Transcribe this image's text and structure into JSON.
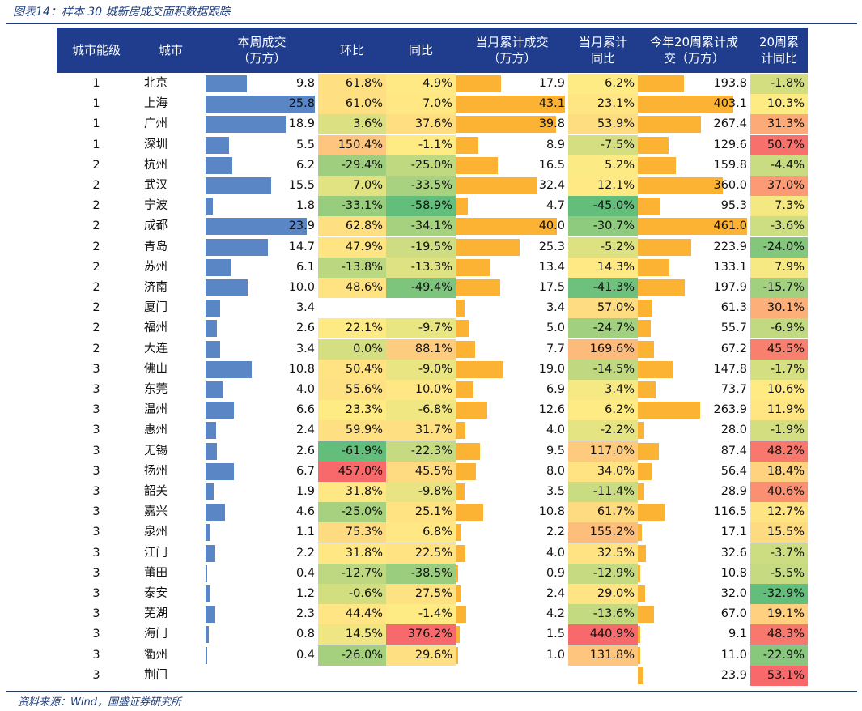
{
  "caption": "图表14：样本 30 城新房成交面积数据跟踪",
  "source": "资料来源：Wind，国盛证券研究所",
  "headers": {
    "tier": "城市能级",
    "city": "城市",
    "week": "本周成交\n（万方）",
    "hb": "环比",
    "tb": "同比",
    "month": "当月累计成交\n（万方）",
    "month_tb": "当月累计\n同比",
    "ytd": "今年20周累计成\n交（万方）",
    "ytd_tb": "20周累\n计同比"
  },
  "colors": {
    "header_bg": "#1f3d8c",
    "bar_blue": "#5b86c5",
    "bar_orange": "#fcb232",
    "rule": "#1f3d7a"
  },
  "table_data": {
    "type": "table",
    "rows": [
      {
        "tier": "1",
        "city": "北京",
        "week": "9.8",
        "hb": "61.8%",
        "tb": "4.9%",
        "month": "17.9",
        "month_tb": "6.2%",
        "ytd": "193.8",
        "ytd_tb": "-1.8%"
      },
      {
        "tier": "1",
        "city": "上海",
        "week": "25.8",
        "hb": "61.0%",
        "tb": "7.0%",
        "month": "43.1",
        "month_tb": "23.1%",
        "ytd": "403.1",
        "ytd_tb": "10.3%"
      },
      {
        "tier": "1",
        "city": "广州",
        "week": "18.9",
        "hb": "3.6%",
        "tb": "37.6%",
        "month": "39.8",
        "month_tb": "53.9%",
        "ytd": "267.4",
        "ytd_tb": "31.3%"
      },
      {
        "tier": "1",
        "city": "深圳",
        "week": "5.5",
        "hb": "150.4%",
        "tb": "-1.1%",
        "month": "8.9",
        "month_tb": "-7.5%",
        "ytd": "129.6",
        "ytd_tb": "50.7%"
      },
      {
        "tier": "2",
        "city": "杭州",
        "week": "6.2",
        "hb": "-29.4%",
        "tb": "-25.0%",
        "month": "16.5",
        "month_tb": "5.2%",
        "ytd": "159.8",
        "ytd_tb": "-4.4%"
      },
      {
        "tier": "2",
        "city": "武汉",
        "week": "15.5",
        "hb": "7.0%",
        "tb": "-33.5%",
        "month": "32.4",
        "month_tb": "12.1%",
        "ytd": "360.0",
        "ytd_tb": "37.0%"
      },
      {
        "tier": "2",
        "city": "宁波",
        "week": "1.8",
        "hb": "-33.1%",
        "tb": "-58.9%",
        "month": "4.7",
        "month_tb": "-45.0%",
        "ytd": "95.3",
        "ytd_tb": "7.3%"
      },
      {
        "tier": "2",
        "city": "成都",
        "week": "23.9",
        "hb": "62.8%",
        "tb": "-34.1%",
        "month": "40.0",
        "month_tb": "-30.7%",
        "ytd": "461.0",
        "ytd_tb": "-3.6%"
      },
      {
        "tier": "2",
        "city": "青岛",
        "week": "14.7",
        "hb": "47.9%",
        "tb": "-19.5%",
        "month": "25.3",
        "month_tb": "-5.2%",
        "ytd": "223.9",
        "ytd_tb": "-24.0%"
      },
      {
        "tier": "2",
        "city": "苏州",
        "week": "6.1",
        "hb": "-13.8%",
        "tb": "-13.3%",
        "month": "13.4",
        "month_tb": "14.3%",
        "ytd": "133.1",
        "ytd_tb": "7.9%"
      },
      {
        "tier": "2",
        "city": "济南",
        "week": "10.0",
        "hb": "48.6%",
        "tb": "-49.4%",
        "month": "17.5",
        "month_tb": "-41.3%",
        "ytd": "197.9",
        "ytd_tb": "-15.7%"
      },
      {
        "tier": "2",
        "city": "厦门",
        "week": "3.4",
        "hb": "",
        "tb": "",
        "month": "3.4",
        "month_tb": "57.0%",
        "ytd": "61.3",
        "ytd_tb": "30.1%"
      },
      {
        "tier": "2",
        "city": "福州",
        "week": "2.6",
        "hb": "22.1%",
        "tb": "-9.7%",
        "month": "5.0",
        "month_tb": "-24.7%",
        "ytd": "55.7",
        "ytd_tb": "-6.9%"
      },
      {
        "tier": "2",
        "city": "大连",
        "week": "3.4",
        "hb": "0.0%",
        "tb": "88.1%",
        "month": "7.7",
        "month_tb": "169.6%",
        "ytd": "67.2",
        "ytd_tb": "45.5%"
      },
      {
        "tier": "3",
        "city": "佛山",
        "week": "10.8",
        "hb": "50.4%",
        "tb": "-9.0%",
        "month": "19.0",
        "month_tb": "-14.5%",
        "ytd": "147.8",
        "ytd_tb": "-1.7%"
      },
      {
        "tier": "3",
        "city": "东莞",
        "week": "4.0",
        "hb": "55.6%",
        "tb": "10.0%",
        "month": "6.9",
        "month_tb": "3.4%",
        "ytd": "73.7",
        "ytd_tb": "10.6%"
      },
      {
        "tier": "3",
        "city": "温州",
        "week": "6.6",
        "hb": "23.3%",
        "tb": "-6.8%",
        "month": "12.6",
        "month_tb": "6.2%",
        "ytd": "263.9",
        "ytd_tb": "11.9%"
      },
      {
        "tier": "3",
        "city": "惠州",
        "week": "2.4",
        "hb": "59.9%",
        "tb": "31.7%",
        "month": "4.0",
        "month_tb": "-2.2%",
        "ytd": "28.0",
        "ytd_tb": "-1.9%"
      },
      {
        "tier": "3",
        "city": "无锡",
        "week": "2.6",
        "hb": "-61.9%",
        "tb": "-22.3%",
        "month": "9.5",
        "month_tb": "117.0%",
        "ytd": "87.4",
        "ytd_tb": "48.2%"
      },
      {
        "tier": "3",
        "city": "扬州",
        "week": "6.7",
        "hb": "457.0%",
        "tb": "45.5%",
        "month": "8.0",
        "month_tb": "34.0%",
        "ytd": "56.4",
        "ytd_tb": "18.4%"
      },
      {
        "tier": "3",
        "city": "韶关",
        "week": "1.9",
        "hb": "31.8%",
        "tb": "-9.8%",
        "month": "3.5",
        "month_tb": "-11.4%",
        "ytd": "28.9",
        "ytd_tb": "40.6%"
      },
      {
        "tier": "3",
        "city": "嘉兴",
        "week": "4.6",
        "hb": "-25.0%",
        "tb": "25.1%",
        "month": "10.8",
        "month_tb": "61.7%",
        "ytd": "116.5",
        "ytd_tb": "12.7%"
      },
      {
        "tier": "3",
        "city": "泉州",
        "week": "1.1",
        "hb": "75.3%",
        "tb": "6.8%",
        "month": "2.2",
        "month_tb": "155.2%",
        "ytd": "17.1",
        "ytd_tb": "15.5%"
      },
      {
        "tier": "3",
        "city": "江门",
        "week": "2.2",
        "hb": "31.8%",
        "tb": "22.5%",
        "month": "4.0",
        "month_tb": "32.5%",
        "ytd": "32.6",
        "ytd_tb": "-3.7%"
      },
      {
        "tier": "3",
        "city": "莆田",
        "week": "0.4",
        "hb": "-12.7%",
        "tb": "-38.5%",
        "month": "0.9",
        "month_tb": "-12.9%",
        "ytd": "10.8",
        "ytd_tb": "-5.5%"
      },
      {
        "tier": "3",
        "city": "泰安",
        "week": "1.2",
        "hb": "-0.6%",
        "tb": "27.5%",
        "month": "2.4",
        "month_tb": "29.0%",
        "ytd": "32.0",
        "ytd_tb": "-32.9%"
      },
      {
        "tier": "3",
        "city": "芜湖",
        "week": "2.3",
        "hb": "44.4%",
        "tb": "-1.4%",
        "month": "4.2",
        "month_tb": "-13.6%",
        "ytd": "67.0",
        "ytd_tb": "19.1%"
      },
      {
        "tier": "3",
        "city": "海门",
        "week": "0.8",
        "hb": "14.5%",
        "tb": "376.2%",
        "month": "1.5",
        "month_tb": "440.9%",
        "ytd": "9.1",
        "ytd_tb": "48.3%"
      },
      {
        "tier": "3",
        "city": "衢州",
        "week": "0.4",
        "hb": "-26.0%",
        "tb": "29.6%",
        "month": "1.0",
        "month_tb": "131.8%",
        "ytd": "11.0",
        "ytd_tb": "-22.9%"
      },
      {
        "tier": "3",
        "city": "荆门",
        "week": "",
        "hb": "",
        "tb": "",
        "month": "",
        "month_tb": "",
        "ytd": "23.9",
        "ytd_tb": "53.1%"
      }
    ]
  }
}
